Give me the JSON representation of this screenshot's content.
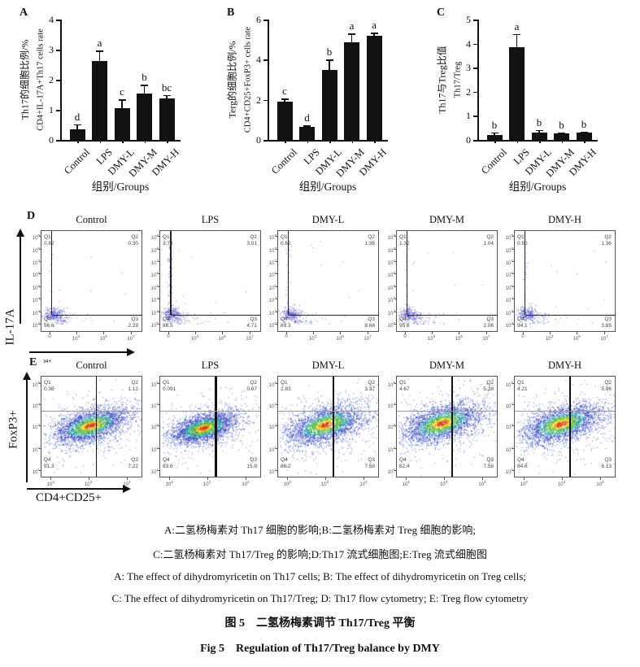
{
  "colors": {
    "bar": "#111111",
    "flow_pseudocolor": [
      "#d63000",
      "#f08c00",
      "#ffd800",
      "#55c038",
      "#25a0a8",
      "#2a3fbf"
    ],
    "flow_sparse_dot": "#3a3ab8"
  },
  "quad_labels": [
    "Q1",
    "Q2",
    "Q3",
    "Q4"
  ],
  "chart_data": [
    {
      "panel": "A",
      "type": "bar",
      "ylabel_cn": "Th17的细胞比例/%",
      "ylabel_en": "CD4+IL-17A+Th17 cells rate",
      "xlabel": "组别/Groups",
      "categories": [
        "Control",
        "LPS",
        "DMY-L",
        "DMY-M",
        "DMY-H"
      ],
      "values": [
        0.35,
        2.62,
        1.05,
        1.55,
        1.38
      ],
      "errors": [
        0.17,
        0.35,
        0.3,
        0.28,
        0.12
      ],
      "sig_letters": [
        "d",
        "a",
        "c",
        "b",
        "bc"
      ],
      "ylim": [
        0,
        4
      ],
      "yticks": [
        0,
        1,
        2,
        3,
        4
      ]
    },
    {
      "panel": "B",
      "type": "bar",
      "ylabel_cn": "Terg的细胞比例/%",
      "ylabel_en": "CD4+CD25+FoxP3+ cells rate",
      "xlabel": "组别/Groups",
      "categories": [
        "Control",
        "LPS",
        "DMY-L",
        "DMY-M",
        "DMY-H"
      ],
      "values": [
        1.9,
        0.65,
        3.5,
        4.85,
        5.2
      ],
      "errors": [
        0.15,
        0.06,
        0.5,
        0.45,
        0.15
      ],
      "sig_letters": [
        "c",
        "d",
        "b",
        "a",
        "a"
      ],
      "ylim": [
        0,
        6
      ],
      "yticks": [
        0,
        2,
        4,
        6
      ]
    },
    {
      "panel": "C",
      "type": "bar",
      "ylabel_cn": "Th17与Treg比值",
      "ylabel_en": "Th17/Treg",
      "xlabel": "组别/Groups",
      "categories": [
        "Control",
        "LPS",
        "DMY-L",
        "DMY-M",
        "DMY-H"
      ],
      "values": [
        0.2,
        3.85,
        0.3,
        0.26,
        0.3
      ],
      "errors": [
        0.12,
        0.55,
        0.12,
        0.05,
        0.04
      ],
      "sig_letters": [
        "b",
        "a",
        "b",
        "b",
        "b"
      ],
      "ylim": [
        0,
        5
      ],
      "yticks": [
        0,
        1,
        2,
        3,
        4,
        5
      ]
    },
    {
      "panel": "D",
      "type": "scatter",
      "kind": "flow-cytometry",
      "y_axis_label": "IL-17A",
      "x_axis_label": "",
      "y_ticks": [
        "10^9",
        "10^8",
        "10^7",
        "10^6",
        "10^5",
        "10^4",
        "10^3",
        "10^2"
      ],
      "x_ticks": [
        "0",
        "10^3",
        "10^5",
        "10^7"
      ],
      "plots": [
        {
          "title": "Control",
          "Q1": "0.82",
          "Q2": "0.30",
          "Q3": "2.29",
          "Q4": "96.6"
        },
        {
          "title": "LPS",
          "Q1": "3.73",
          "Q2": "3.01",
          "Q3": "4.71",
          "Q4": "88.5"
        },
        {
          "title": "DMY-L",
          "Q1": "0.62",
          "Q2": "1.36",
          "Q3": "8.68",
          "Q4": "89.3"
        },
        {
          "title": "DMY-M",
          "Q1": "1.32",
          "Q2": "1.04",
          "Q3": "2.08",
          "Q4": "95.6"
        },
        {
          "title": "DMY-H",
          "Q1": "0.90",
          "Q2": "1.36",
          "Q3": "3.65",
          "Q4": "94.1"
        }
      ]
    },
    {
      "panel": "E",
      "panel_suffix": "34+",
      "type": "scatter",
      "kind": "flow-cytometry",
      "y_axis_label": "FoxP3+",
      "x_axis_label": "CD4+CD25+",
      "y_ticks": [
        "10^5",
        "10^4",
        "10^3",
        "10^2",
        "10^1"
      ],
      "x_ticks": [
        "10^2",
        "10^3",
        "10^4"
      ],
      "plots": [
        {
          "title": "Control",
          "Q1": "0.36",
          "Q2": "1.12",
          "Q3": "7.22",
          "Q4": "91.3"
        },
        {
          "title": "LPS",
          "Q1": "0.091",
          "Q2": "0.67",
          "Q3": "15.8",
          "Q4": "83.6"
        },
        {
          "title": "DMY-L",
          "Q1": "2.83",
          "Q2": "3.37",
          "Q3": "7.58",
          "Q4": "86.2"
        },
        {
          "title": "DMY-M",
          "Q1": "4.67",
          "Q2": "5.38",
          "Q3": "7.58",
          "Q4": "82.4"
        },
        {
          "title": "DMY-H",
          "Q1": "4.21",
          "Q2": "5.96",
          "Q3": "6.13",
          "Q4": "84.6"
        }
      ]
    }
  ],
  "caption": {
    "lines": [
      "A:二氢杨梅素对 Th17 细胞的影响;B:二氢杨梅素对 Treg 细胞的影响;",
      "C:二氢杨梅素对 Th17/Treg 的影响;D:Th17 流式细胞图;E:Treg 流式细胞图",
      "A: The effect of dihydromyricetin on Th17 cells; B: The effect of dihydromyricetin on Treg cells;",
      "C: The effect of dihydromyricetin on Th17/Treg; D: Th17 flow cytometry; E: Treg flow cytometry",
      "图 5　二氢杨梅素调节 Th17/Treg 平衡",
      "Fig 5　Regulation of Th17/Treg balance by DMY"
    ]
  }
}
